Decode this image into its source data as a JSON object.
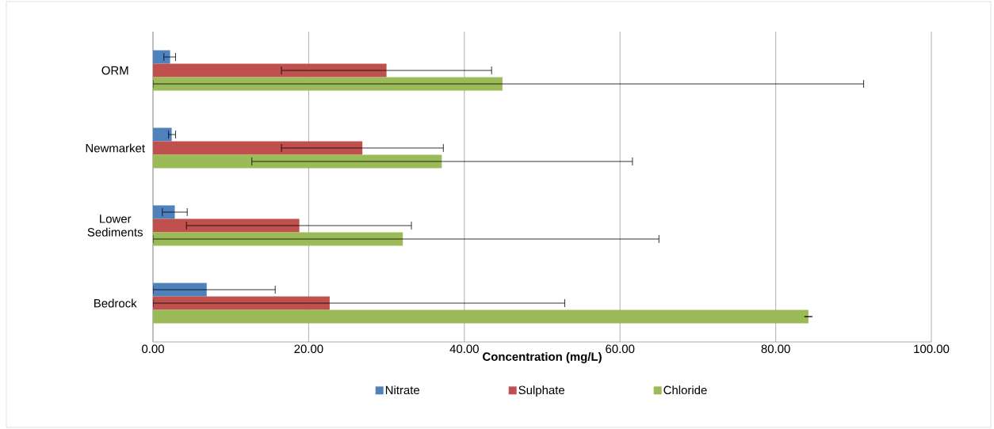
{
  "chart_data": {
    "type": "bar",
    "orientation": "horizontal",
    "xlabel": "Concentration (mg/L)",
    "categories": [
      "ORM",
      "Newmarket",
      "Lower Sediments",
      "Bedrock"
    ],
    "series": [
      {
        "name": "Nitrate",
        "color": "#4f81bd",
        "values": [
          2.2,
          2.4,
          2.8,
          6.9
        ],
        "errors": [
          [
            1.4,
            2.9
          ],
          [
            2.0,
            2.9
          ],
          [
            1.2,
            4.4
          ],
          [
            0,
            15.7
          ]
        ]
      },
      {
        "name": "Sulphate",
        "color": "#c0504d",
        "values": [
          30.0,
          26.9,
          18.8,
          22.7
        ],
        "errors": [
          [
            16.5,
            43.5
          ],
          [
            16.5,
            37.3
          ],
          [
            4.3,
            33.2
          ],
          [
            0,
            52.9
          ]
        ]
      },
      {
        "name": "Chloride",
        "color": "#9bbb59",
        "values": [
          44.9,
          37.1,
          32.1,
          84.2
        ],
        "errors": [
          [
            0,
            91.3
          ],
          [
            12.7,
            61.6
          ],
          [
            0,
            65.0
          ],
          [
            84.2,
            84.2
          ]
        ]
      }
    ],
    "xlim": [
      0,
      100
    ],
    "xticks": [
      {
        "value": 0,
        "label": "0.00"
      },
      {
        "value": 20,
        "label": "20.00"
      },
      {
        "value": 40,
        "label": "40.00"
      },
      {
        "value": 60,
        "label": "60.00"
      },
      {
        "value": 80,
        "label": "80.00"
      },
      {
        "value": 100,
        "label": "100.00"
      }
    ],
    "grid": "x",
    "legend": "bottom"
  }
}
